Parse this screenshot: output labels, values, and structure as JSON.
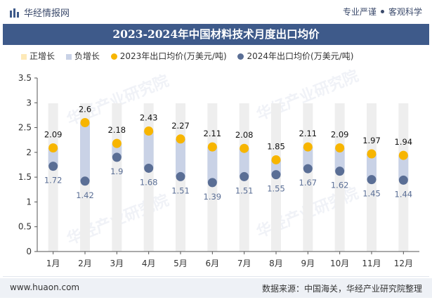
{
  "header": {
    "brand": "华经情报网",
    "tagline_left": "专业严谨",
    "tagline_right": "客观科学"
  },
  "title": "2023-2024年中国材料技术月度出口均价",
  "legend": [
    {
      "label": "正增长",
      "color": "#fde9b8",
      "shape": "square"
    },
    {
      "label": "负增长",
      "color": "#c9d2e6",
      "shape": "square"
    },
    {
      "label": "2023年出口均价(万美元/吨)",
      "color": "#f7b500",
      "shape": "circle"
    },
    {
      "label": "2024年出口均价(万美元/吨)",
      "color": "#5a6e95",
      "shape": "circle"
    }
  ],
  "watermark": "华经产业研究院",
  "footer": {
    "url": "www.huaon.com",
    "source": "数据来源：中国海关，华经产业研究院整理"
  },
  "colors": {
    "title_bg": "#3e5a8a",
    "background_column": "#eeeeee",
    "positive_bar": "#fde9b8",
    "negative_bar": "#c9d2e6",
    "series_2023": "#f7b500",
    "series_2024": "#5a6e95"
  },
  "chart_data": {
    "type": "dumbbell",
    "categories": [
      "1月",
      "2月",
      "3月",
      "4月",
      "5月",
      "6月",
      "7月",
      "8月",
      "9月",
      "10月",
      "11月",
      "12月"
    ],
    "series": [
      {
        "name": "2023年出口均价(万美元/吨)",
        "values": [
          2.09,
          2.6,
          2.18,
          2.43,
          2.27,
          2.11,
          2.08,
          1.85,
          2.11,
          2.09,
          1.97,
          1.94
        ]
      },
      {
        "name": "2024年出口均价(万美元/吨)",
        "values": [
          1.72,
          1.42,
          1.9,
          1.68,
          1.51,
          1.39,
          1.51,
          1.55,
          1.67,
          1.62,
          1.45,
          1.44
        ]
      }
    ],
    "data_labels_2023": [
      "2.09",
      "2.6",
      "2.18",
      "2.43",
      "2.27",
      "2.11",
      "2.08",
      "1.85",
      "2.11",
      "2.09",
      "1.97",
      "1.94"
    ],
    "data_labels_2024": [
      "1.72",
      "1.42",
      "1.9",
      "1.68",
      "1.51",
      "1.39",
      "1.51",
      "1.55",
      "1.67",
      "1.62",
      "1.45",
      "1.44"
    ],
    "yticks": [
      "0",
      "0.5",
      "1",
      "1.5",
      "2",
      "2.5",
      "3",
      "3.5"
    ],
    "ylim": [
      0,
      3.5
    ],
    "grid": false
  }
}
